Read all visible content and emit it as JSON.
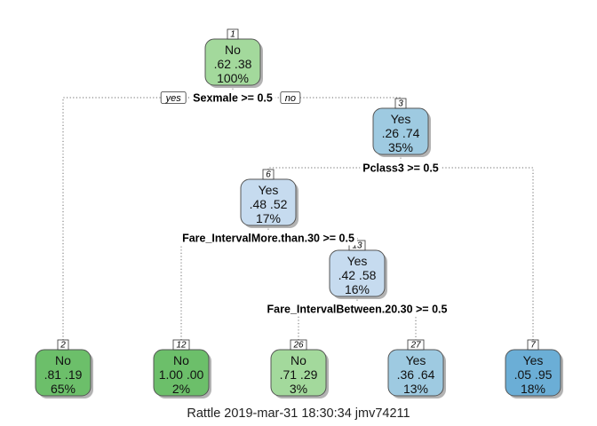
{
  "caption": "Rattle 2019-mar-31 18:30:34 jmv74211",
  "colors": {
    "no_dark": "#6cbf6a",
    "no_light": "#a3d99c",
    "yes_light": "#c6dbef",
    "yes_mid": "#9ecae1",
    "yes_dark": "#6baed6",
    "edge": "#555555",
    "connector": "#888888",
    "shadow": "#b3b3b3"
  },
  "branch_labels": {
    "yes": "yes",
    "no": "no"
  },
  "nodes": [
    {
      "id": "1",
      "class": "No",
      "probs": ".62  .38",
      "pct": "100%",
      "fill": "#a3d99c"
    },
    {
      "id": "3",
      "class": "Yes",
      "probs": ".26  .74",
      "pct": "35%",
      "fill": "#9ecae1"
    },
    {
      "id": "6",
      "class": "Yes",
      "probs": ".48  .52",
      "pct": "17%",
      "fill": "#c6dbef"
    },
    {
      "id": "13",
      "class": "Yes",
      "probs": ".42  .58",
      "pct": "16%",
      "fill": "#c6dbef"
    },
    {
      "id": "2",
      "class": "No",
      "probs": ".81  .19",
      "pct": "65%",
      "fill": "#6cbf6a"
    },
    {
      "id": "12",
      "class": "No",
      "probs": "1.00  .00",
      "pct": "2%",
      "fill": "#6cbf6a"
    },
    {
      "id": "26",
      "class": "No",
      "probs": ".71  .29",
      "pct": "3%",
      "fill": "#a3d99c"
    },
    {
      "id": "27",
      "class": "Yes",
      "probs": ".36  .64",
      "pct": "13%",
      "fill": "#9ecae1"
    },
    {
      "id": "7",
      "class": "Yes",
      "probs": ".05  .95",
      "pct": "18%",
      "fill": "#6baed6"
    }
  ],
  "splits": [
    {
      "node": "1",
      "label": "Sexmale >= 0.5"
    },
    {
      "node": "3",
      "label": "Pclass3 >= 0.5"
    },
    {
      "node": "6",
      "label": "Fare_IntervalMore.than.30 >= 0.5"
    },
    {
      "node": "13",
      "label": "Fare_IntervalBetween.20.30 >= 0.5"
    }
  ],
  "edges": [
    {
      "parent": "1",
      "left": "2",
      "right": "3"
    },
    {
      "parent": "3",
      "left": "6",
      "right": "7"
    },
    {
      "parent": "6",
      "left": "12",
      "right": "13"
    },
    {
      "parent": "13",
      "left": "26",
      "right": "27"
    }
  ]
}
